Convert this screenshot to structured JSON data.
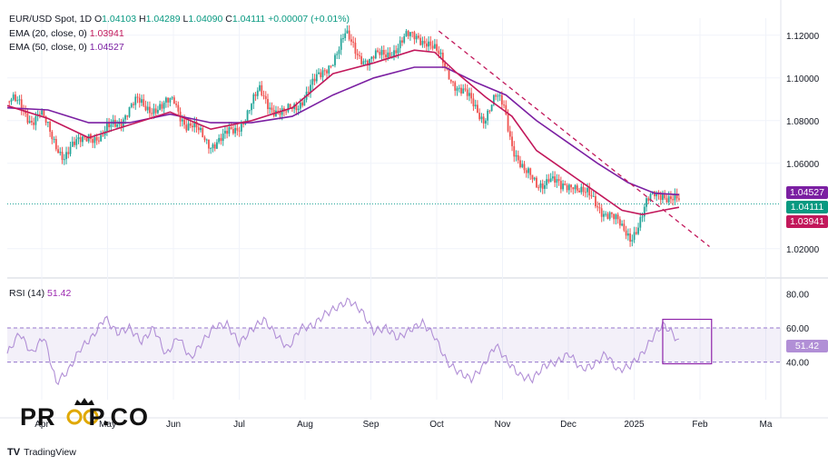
{
  "legend": {
    "symbol": "EUR/USD Spot, 1D",
    "ohlc": {
      "o_label": "O",
      "o": "1.04103",
      "h_label": "H",
      "h": "1.04289",
      "l_label": "L",
      "l": "1.04090",
      "c_label": "C",
      "c": "1.04111",
      "change": "+0.00007 (+0.01%)"
    },
    "ema20": {
      "label": "EMA (20, close, 0)",
      "value": "1.03941"
    },
    "ema50": {
      "label": "EMA (50, close, 0)",
      "value": "1.04527"
    },
    "rsi": {
      "label": "RSI (14)",
      "value": "51.42"
    }
  },
  "badges": {
    "ema50": "1.04527",
    "price": "1.04111",
    "ema20": "1.03941",
    "rsi": "51.42"
  },
  "colors": {
    "up": "#26a69a",
    "down": "#ef5350",
    "ema20": "#c2185b",
    "ema50": "#7b1fa2",
    "rsi": "#b18fd6",
    "trend": "#c2185b",
    "box": "#8e24aa"
  },
  "watermark": {
    "left": "PR",
    "right": "P.CO"
  },
  "footer": {
    "brand": "TradingView"
  },
  "chart_data": {
    "type": "candlestick",
    "price_axis": {
      "ticks": [
        "1.12000",
        "1.10000",
        "1.08000",
        "1.06000",
        "1.02000"
      ],
      "range": [
        1.008,
        1.128
      ]
    },
    "rsi_axis": {
      "ticks": [
        "80.00",
        "60.00",
        "40.00"
      ],
      "range": [
        18,
        86
      ],
      "band": [
        40,
        60
      ]
    },
    "x_labels": [
      "Apr",
      "May",
      "Jun",
      "Jul",
      "Aug",
      "Sep",
      "Oct",
      "Nov",
      "Dec",
      "2025",
      "Feb",
      "Ma"
    ],
    "price_path": [
      [
        0,
        1.089
      ],
      [
        6,
        1.087
      ],
      [
        12,
        1.081
      ],
      [
        16,
        1.083
      ],
      [
        22,
        1.072
      ],
      [
        28,
        1.064
      ],
      [
        34,
        1.068
      ],
      [
        40,
        1.075
      ],
      [
        46,
        1.07
      ],
      [
        52,
        1.079
      ],
      [
        58,
        1.083
      ],
      [
        64,
        1.088
      ],
      [
        70,
        1.087
      ],
      [
        76,
        1.085
      ],
      [
        82,
        1.09
      ],
      [
        88,
        1.078
      ],
      [
        94,
        1.074
      ],
      [
        100,
        1.07
      ],
      [
        106,
        1.071
      ],
      [
        112,
        1.076
      ],
      [
        118,
        1.084
      ],
      [
        124,
        1.093
      ],
      [
        130,
        1.087
      ],
      [
        136,
        1.082
      ],
      [
        142,
        1.087
      ],
      [
        148,
        1.095
      ],
      [
        154,
        1.1
      ],
      [
        160,
        1.11
      ],
      [
        166,
        1.119
      ],
      [
        172,
        1.112
      ],
      [
        178,
        1.108
      ],
      [
        184,
        1.11
      ],
      [
        190,
        1.114
      ],
      [
        196,
        1.118
      ],
      [
        202,
        1.12
      ],
      [
        206,
        1.118
      ],
      [
        210,
        1.112
      ],
      [
        216,
        1.104
      ],
      [
        222,
        1.095
      ],
      [
        228,
        1.088
      ],
      [
        234,
        1.082
      ],
      [
        240,
        1.09
      ],
      [
        244,
        1.086
      ],
      [
        248,
        1.07
      ],
      [
        254,
        1.055
      ],
      [
        260,
        1.05
      ],
      [
        266,
        1.054
      ],
      [
        272,
        1.047
      ],
      [
        278,
        1.052
      ],
      [
        284,
        1.045
      ],
      [
        290,
        1.04
      ],
      [
        296,
        1.037
      ],
      [
        302,
        1.028
      ],
      [
        306,
        1.026
      ],
      [
        310,
        1.032
      ],
      [
        314,
        1.04
      ],
      [
        318,
        1.045
      ],
      [
        322,
        1.047
      ],
      [
        326,
        1.044
      ],
      [
        330,
        1.041
      ]
    ],
    "ema20_path": [
      [
        0,
        1.087
      ],
      [
        20,
        1.081
      ],
      [
        40,
        1.072
      ],
      [
        60,
        1.078
      ],
      [
        80,
        1.084
      ],
      [
        100,
        1.076
      ],
      [
        120,
        1.08
      ],
      [
        140,
        1.086
      ],
      [
        160,
        1.102
      ],
      [
        180,
        1.107
      ],
      [
        200,
        1.113
      ],
      [
        210,
        1.112
      ],
      [
        220,
        1.103
      ],
      [
        235,
        1.091
      ],
      [
        248,
        1.082
      ],
      [
        260,
        1.066
      ],
      [
        275,
        1.056
      ],
      [
        290,
        1.046
      ],
      [
        302,
        1.038
      ],
      [
        312,
        1.036
      ],
      [
        322,
        1.038
      ],
      [
        330,
        1.0394
      ]
    ],
    "ema50_path": [
      [
        0,
        1.086
      ],
      [
        20,
        1.085
      ],
      [
        40,
        1.079
      ],
      [
        60,
        1.079
      ],
      [
        80,
        1.083
      ],
      [
        100,
        1.079
      ],
      [
        120,
        1.079
      ],
      [
        140,
        1.082
      ],
      [
        160,
        1.092
      ],
      [
        180,
        1.1
      ],
      [
        200,
        1.105
      ],
      [
        215,
        1.105
      ],
      [
        230,
        1.098
      ],
      [
        245,
        1.092
      ],
      [
        260,
        1.08
      ],
      [
        275,
        1.07
      ],
      [
        290,
        1.06
      ],
      [
        305,
        1.051
      ],
      [
        318,
        1.046
      ],
      [
        330,
        1.0453
      ]
    ],
    "trendline": [
      [
        212,
        1.122
      ],
      [
        345,
        1.021
      ]
    ],
    "rsi_path": [
      [
        0,
        45
      ],
      [
        6,
        57
      ],
      [
        12,
        45
      ],
      [
        18,
        55
      ],
      [
        24,
        28
      ],
      [
        30,
        35
      ],
      [
        36,
        48
      ],
      [
        42,
        55
      ],
      [
        48,
        66
      ],
      [
        54,
        57
      ],
      [
        60,
        60
      ],
      [
        66,
        52
      ],
      [
        72,
        60
      ],
      [
        78,
        44
      ],
      [
        84,
        55
      ],
      [
        90,
        42
      ],
      [
        96,
        52
      ],
      [
        102,
        61
      ],
      [
        108,
        62
      ],
      [
        114,
        51
      ],
      [
        120,
        59
      ],
      [
        126,
        65
      ],
      [
        132,
        56
      ],
      [
        138,
        48
      ],
      [
        144,
        60
      ],
      [
        150,
        61
      ],
      [
        156,
        68
      ],
      [
        162,
        72
      ],
      [
        168,
        76
      ],
      [
        174,
        70
      ],
      [
        180,
        58
      ],
      [
        186,
        60
      ],
      [
        192,
        54
      ],
      [
        198,
        59
      ],
      [
        204,
        63
      ],
      [
        210,
        55
      ],
      [
        216,
        40
      ],
      [
        222,
        34
      ],
      [
        228,
        30
      ],
      [
        234,
        38
      ],
      [
        240,
        50
      ],
      [
        246,
        40
      ],
      [
        252,
        32
      ],
      [
        258,
        30
      ],
      [
        264,
        38
      ],
      [
        270,
        40
      ],
      [
        276,
        45
      ],
      [
        282,
        36
      ],
      [
        288,
        38
      ],
      [
        294,
        45
      ],
      [
        300,
        35
      ],
      [
        306,
        38
      ],
      [
        312,
        45
      ],
      [
        318,
        56
      ],
      [
        322,
        62
      ],
      [
        326,
        58
      ],
      [
        330,
        51.42
      ]
    ],
    "annotation_box": {
      "x": [
        322,
        346
      ],
      "y": [
        39,
        65
      ]
    }
  }
}
